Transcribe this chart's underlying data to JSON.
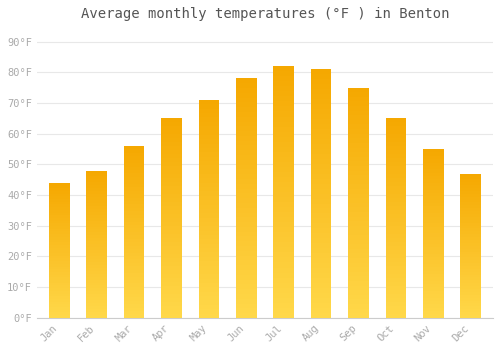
{
  "title": "Average monthly temperatures (°F ) in Benton",
  "months": [
    "Jan",
    "Feb",
    "Mar",
    "Apr",
    "May",
    "Jun",
    "Jul",
    "Aug",
    "Sep",
    "Oct",
    "Nov",
    "Dec"
  ],
  "values": [
    44,
    48,
    56,
    65,
    71,
    78,
    82,
    81,
    75,
    65,
    55,
    47
  ],
  "bar_color_bottom": "#FFD84A",
  "bar_color_top": "#F5A800",
  "background_color": "#ffffff",
  "grid_color": "#e8e8e8",
  "yticks": [
    0,
    10,
    20,
    30,
    40,
    50,
    60,
    70,
    80,
    90
  ],
  "ytick_labels": [
    "0°F",
    "10°F",
    "20°F",
    "30°F",
    "40°F",
    "50°F",
    "60°F",
    "70°F",
    "80°F",
    "90°F"
  ],
  "ylim": [
    0,
    95
  ],
  "title_fontsize": 10,
  "tick_fontsize": 7.5,
  "font_color": "#aaaaaa",
  "title_color": "#555555",
  "bar_width": 0.55,
  "n_gradient_steps": 50
}
